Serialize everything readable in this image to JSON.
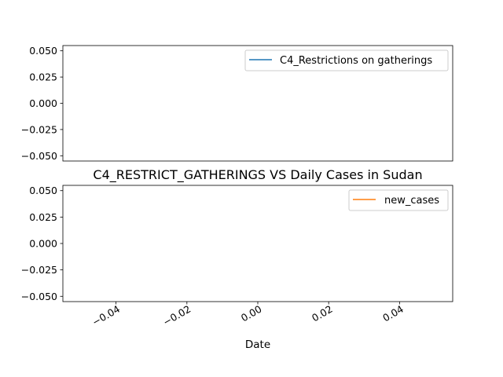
{
  "colors": {
    "series_1": "#1f77b4",
    "series_2": "#ff7f0e",
    "axes": "#000000",
    "legend_border": "#cccccc"
  },
  "chart_data": [
    {
      "type": "line",
      "title": "",
      "xlabel": "",
      "ylabel": "",
      "xlim": [
        -0.055,
        0.055
      ],
      "ylim": [
        -0.055,
        0.055
      ],
      "yticks": [
        "0.050",
        "0.025",
        "0.000",
        "−0.025",
        "−0.050"
      ],
      "ytick_values": [
        0.05,
        0.025,
        0.0,
        -0.025,
        -0.05
      ],
      "xticks": [],
      "grid": false,
      "legend_position": "top-right",
      "series": [
        {
          "name": "C4_Restrictions on gatherings",
          "x": [],
          "values": [],
          "color_key": "series_1"
        }
      ]
    },
    {
      "type": "line",
      "title": "C4_RESTRICT_GATHERINGS VS Daily Cases in Sudan",
      "xlabel": "Date",
      "ylabel": "",
      "xlim": [
        -0.055,
        0.055
      ],
      "ylim": [
        -0.055,
        0.055
      ],
      "yticks": [
        "0.050",
        "0.025",
        "0.000",
        "−0.025",
        "−0.050"
      ],
      "ytick_values": [
        0.05,
        0.025,
        0.0,
        -0.025,
        -0.05
      ],
      "xticks": [
        "−0.04",
        "−0.02",
        "0.00",
        "0.02",
        "0.04"
      ],
      "xtick_values": [
        -0.04,
        -0.02,
        0.0,
        0.02,
        0.04
      ],
      "grid": false,
      "legend_position": "top-right",
      "series": [
        {
          "name": "new_cases",
          "x": [],
          "values": [],
          "color_key": "series_2"
        }
      ]
    }
  ]
}
